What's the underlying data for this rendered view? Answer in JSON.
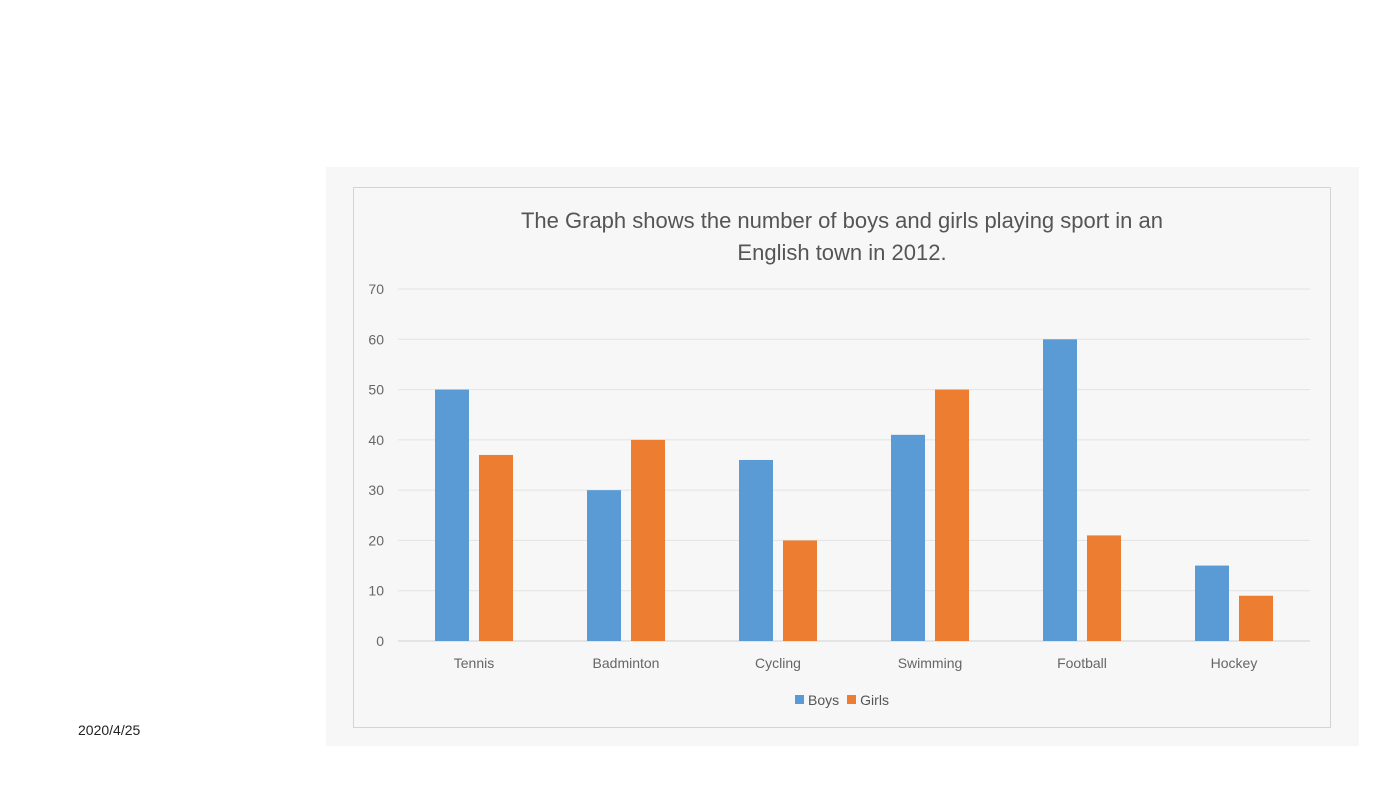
{
  "slide": {
    "date": "2020/4/25"
  },
  "chart_data": {
    "type": "bar",
    "title": [
      "The Graph shows the number of boys and girls playing sport in an",
      "English town in 2012."
    ],
    "categories": [
      "Tennis",
      "Badminton",
      "Cycling",
      "Swimming",
      "Football",
      "Hockey"
    ],
    "series": [
      {
        "name": "Boys",
        "color": "#5b9bd5",
        "values": [
          50,
          30,
          36,
          41,
          60,
          15
        ]
      },
      {
        "name": "Girls",
        "color": "#ed7d31",
        "values": [
          37,
          40,
          20,
          50,
          21,
          9
        ]
      }
    ],
    "ylim": [
      0,
      70
    ],
    "yticks": [
      0,
      10,
      20,
      30,
      40,
      50,
      60,
      70
    ],
    "grid": true,
    "legend": "bottom"
  }
}
